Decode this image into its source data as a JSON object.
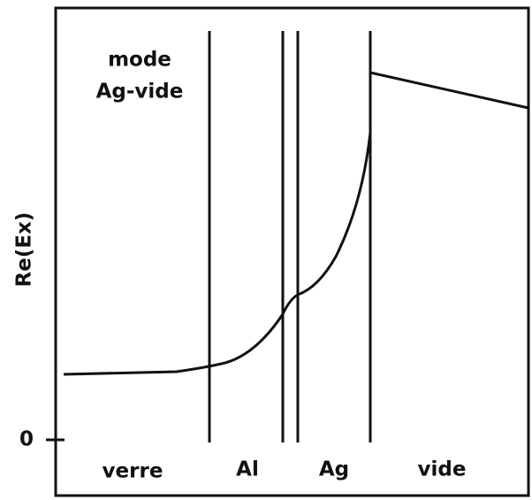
{
  "mode_label": [
    "mode",
    "Ag-vide"
  ],
  "y_axis_label": "Re(Ex)",
  "y_tick": "0",
  "regions": [
    "verre",
    "Al",
    "Ag",
    "vide"
  ]
}
